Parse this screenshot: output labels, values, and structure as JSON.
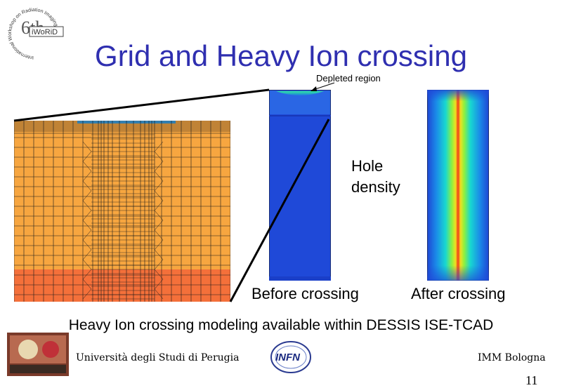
{
  "slide": {
    "title": "Grid and Heavy Ion crossing",
    "depleted_label": "Depleted region",
    "hole_label_line1": "Hole",
    "hole_label_line2": "density",
    "before_label": "Before crossing",
    "after_label": "After crossing",
    "caption": "Heavy Ion crossing modeling available within DESSIS ISE-TCAD"
  },
  "footer": {
    "university": "Università degli Studi di Perugia",
    "imm": "IMM Bologna",
    "page_number": "11"
  },
  "logos": {
    "workshop_big": "6th",
    "workshop_small": "iWoRiD",
    "workshop_ring": "International Workshop on Radiation Imaging Detectors",
    "infn": "INFN"
  },
  "colors": {
    "title": "#2f2fb0",
    "mesh_upper": "#f7a640",
    "mesh_lower": "#f4703a",
    "sim_blue": "#1a3fd6"
  }
}
